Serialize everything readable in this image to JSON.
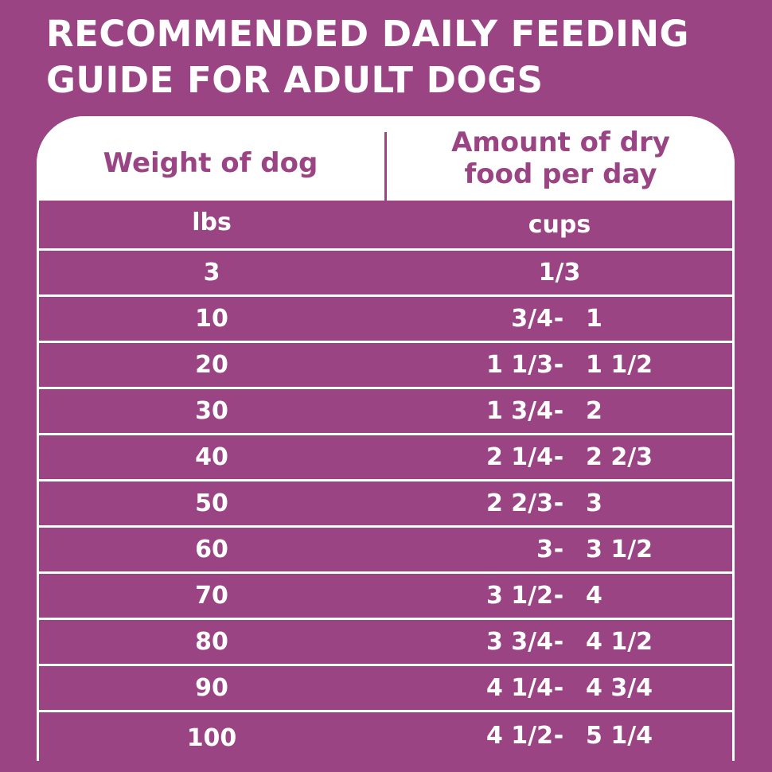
{
  "title_line1": "RECOMMENDED DAILY FEEDING",
  "title_line2": "GUIDE FOR ADULT DOGS",
  "headers": {
    "weight": "Weight of dog",
    "amount_line1": "Amount of dry",
    "amount_line2": "food per day"
  },
  "units": {
    "weight": "lbs",
    "amount": "cups"
  },
  "rows": [
    {
      "weight": "3",
      "single": "1/3"
    },
    {
      "weight": "10",
      "low": "3/4",
      "dash": "-",
      "high": "1"
    },
    {
      "weight": "20",
      "low": "1 1/3",
      "dash": "-",
      "high": "1 1/2"
    },
    {
      "weight": "30",
      "low": "1 3/4",
      "dash": "-",
      "high": "2"
    },
    {
      "weight": "40",
      "low": "2 1/4",
      "dash": "-",
      "high": "2 2/3"
    },
    {
      "weight": "50",
      "low": "2 2/3",
      "dash": "-",
      "high": "3"
    },
    {
      "weight": "60",
      "low": "3",
      "dash": "-",
      "high": "3 1/2"
    },
    {
      "weight": "70",
      "low": "3 1/2",
      "dash": "-",
      "high": "4"
    },
    {
      "weight": "80",
      "low": "3 3/4",
      "dash": "-",
      "high": "4 1/2"
    },
    {
      "weight": "90",
      "low": "4 1/4",
      "dash": "-",
      "high": "4 3/4"
    },
    {
      "weight": "100",
      "low": "4 1/2",
      "dash": "-",
      "high": "5 1/4"
    }
  ],
  "colors": {
    "background": "#9b4484",
    "header_bg": "#ffffff",
    "text_light": "#ffffff",
    "text_purple": "#9b4484"
  }
}
